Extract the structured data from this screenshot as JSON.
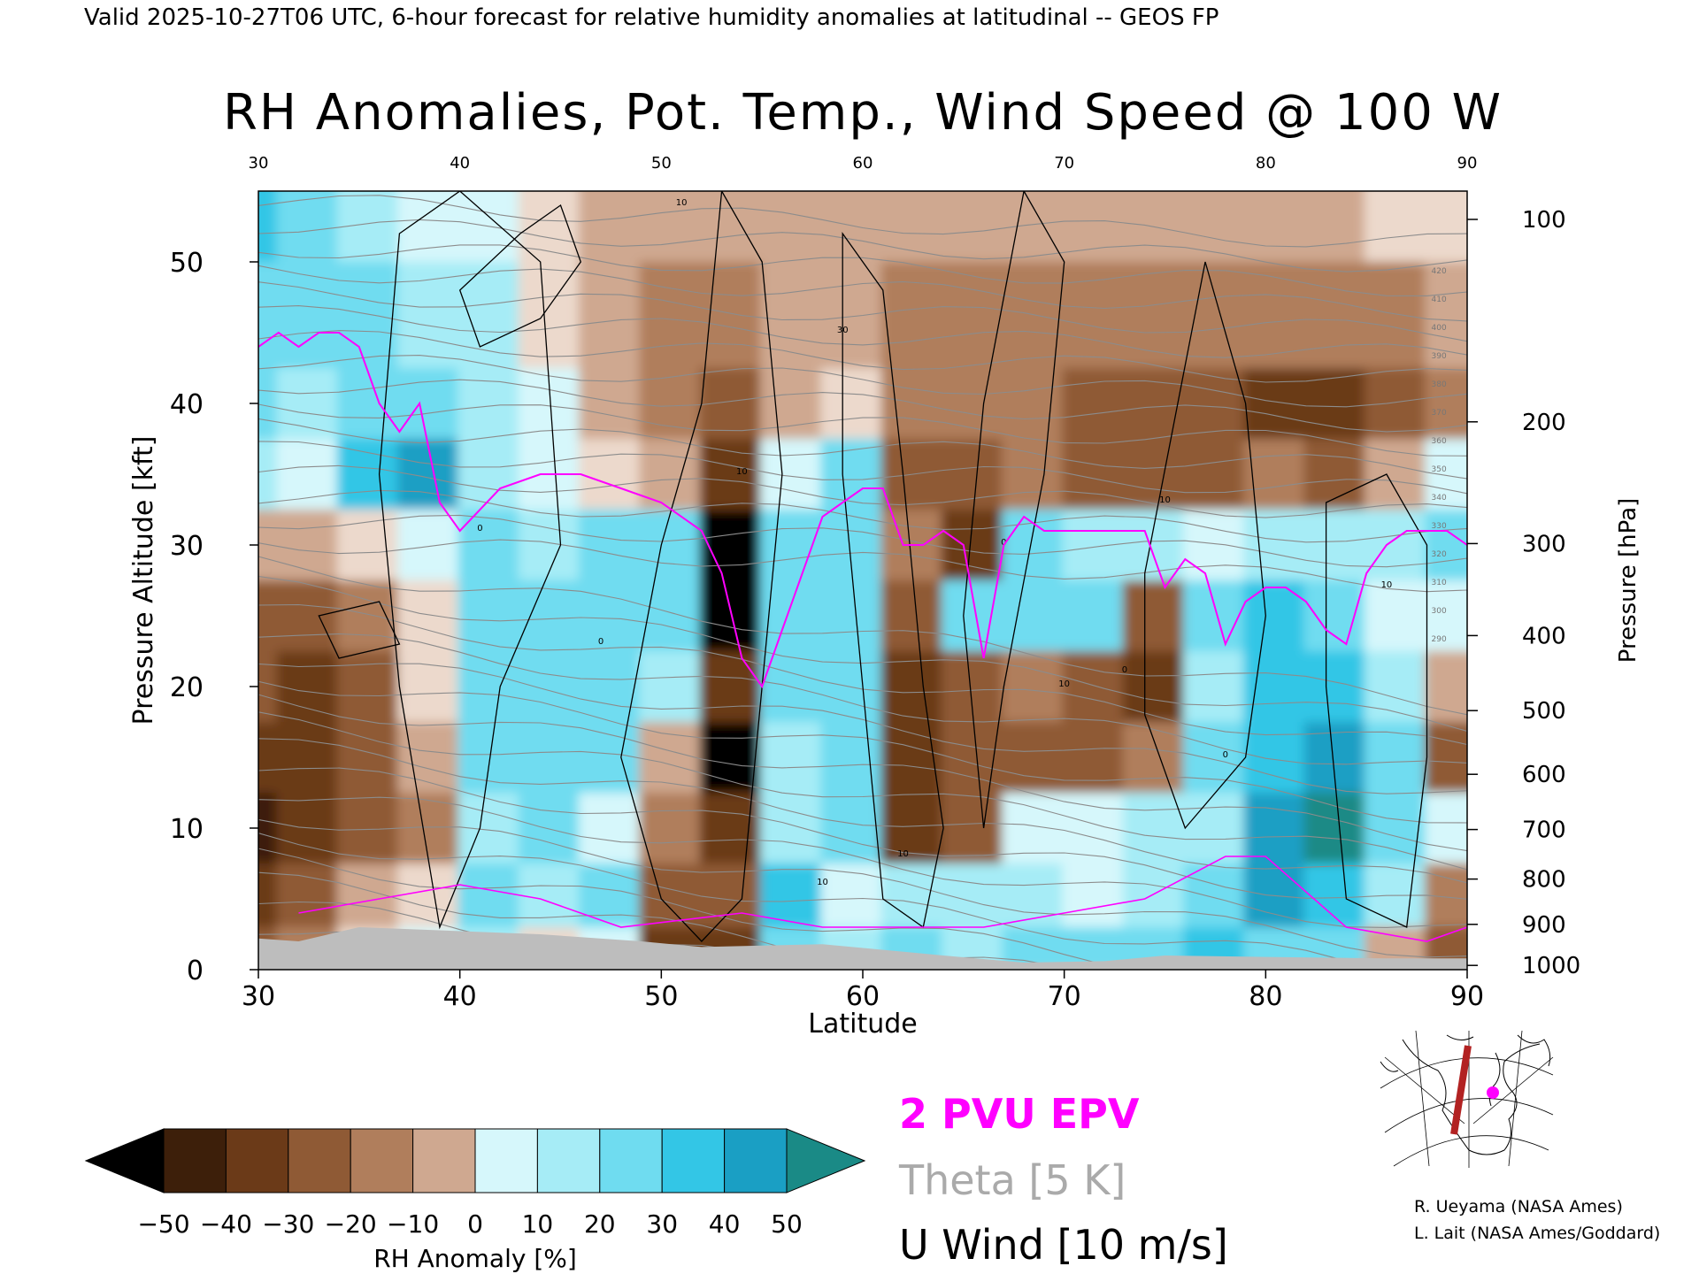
{
  "header": {
    "valid_line": "Valid 2025-10-27T06 UTC, 6-hour forecast for relative humidity anomalies at latitudinal -- GEOS FP"
  },
  "chart_data": {
    "type": "heatmap",
    "title": "RH Anomalies, Pot. Temp., Wind Speed @ 100 W",
    "xlabel": "Latitude",
    "ylabel_left": "Pressure Altitude [kft]",
    "ylabel_right": "Pressure [hPa]",
    "xlim": [
      30,
      90
    ],
    "ylim": [
      0,
      55
    ],
    "x_ticks": [
      30,
      40,
      50,
      60,
      70,
      80,
      90
    ],
    "x_tick_labels": [
      "30",
      "40",
      "50",
      "60",
      "70",
      "80",
      "90"
    ],
    "top_ticks": [
      30,
      40,
      50,
      60,
      70,
      80,
      90
    ],
    "top_tick_labels": [
      "30",
      "40",
      "50",
      "60",
      "70",
      "80",
      "90"
    ],
    "y_ticks": [
      0,
      10,
      20,
      30,
      40,
      50
    ],
    "y_tick_labels": [
      "0",
      "10",
      "20",
      "30",
      "40",
      "50"
    ],
    "pressure_ticks": [
      {
        "label": "100",
        "kft": 53.0
      },
      {
        "label": "200",
        "kft": 38.7
      },
      {
        "label": "300",
        "kft": 30.1
      },
      {
        "label": "400",
        "kft": 23.6
      },
      {
        "label": "500",
        "kft": 18.3
      },
      {
        "label": "600",
        "kft": 13.8
      },
      {
        "label": "700",
        "kft": 9.9
      },
      {
        "label": "800",
        "kft": 6.4
      },
      {
        "label": "900",
        "kft": 3.2
      },
      {
        "label": "1000",
        "kft": 0.3
      }
    ],
    "colorbar": {
      "label": "RH Anomaly [%]",
      "ticks": [
        "−50",
        "−40",
        "−30",
        "−20",
        "−10",
        "0",
        "10",
        "20",
        "30",
        "40",
        "50"
      ],
      "under_color": "#000000",
      "over_color": "#1a8a86",
      "colors": [
        "#3d1f0a",
        "#6b3a18",
        "#8f5a35",
        "#b07e5c",
        "#cfa890",
        "#ecd9cc",
        "#d6f7fb",
        "#a6ecf6",
        "#6fdcf0",
        "#33c6e6",
        "#1a9fc4"
      ]
    },
    "rh_columns": [
      {
        "lat": 30,
        "v": [
          -30,
          -40,
          -45,
          -40,
          -30,
          -25,
          -10,
          20,
          25,
          30,
          40
        ]
      },
      {
        "lat": 33,
        "v": [
          -20,
          -30,
          -35,
          -40,
          -35,
          -30,
          -10,
          10,
          20,
          30,
          30
        ]
      },
      {
        "lat": 36,
        "v": [
          0,
          -10,
          -25,
          -30,
          -30,
          -20,
          0,
          40,
          30,
          25,
          20
        ]
      },
      {
        "lat": 39,
        "v": [
          10,
          0,
          -15,
          -10,
          -5,
          -5,
          10,
          45,
          30,
          20,
          10
        ]
      },
      {
        "lat": 42,
        "v": [
          20,
          25,
          20,
          25,
          30,
          30,
          25,
          20,
          20,
          15,
          5
        ]
      },
      {
        "lat": 45,
        "v": [
          -5,
          15,
          25,
          25,
          25,
          30,
          20,
          10,
          5,
          0,
          -5
        ]
      },
      {
        "lat": 48,
        "v": [
          10,
          25,
          10,
          30,
          30,
          25,
          25,
          -5,
          -10,
          -10,
          -10
        ]
      },
      {
        "lat": 51,
        "v": [
          -35,
          -30,
          -20,
          -10,
          20,
          25,
          30,
          -10,
          -20,
          -15,
          -10
        ]
      },
      {
        "lat": 54,
        "v": [
          -40,
          -30,
          -35,
          -50,
          -40,
          -55,
          -50,
          -40,
          -25,
          -15,
          -10
        ]
      },
      {
        "lat": 57,
        "v": [
          30,
          35,
          20,
          15,
          30,
          25,
          30,
          10,
          -10,
          -10,
          -10
        ]
      },
      {
        "lat": 60,
        "v": [
          20,
          10,
          30,
          30,
          25,
          30,
          25,
          30,
          0,
          -10,
          -10
        ]
      },
      {
        "lat": 63,
        "v": [
          30,
          20,
          -40,
          -35,
          -35,
          -30,
          -20,
          -30,
          -20,
          -15,
          -10
        ]
      },
      {
        "lat": 66,
        "v": [
          20,
          20,
          -30,
          -25,
          -30,
          30,
          -35,
          -25,
          -20,
          -15,
          -10
        ]
      },
      {
        "lat": 69,
        "v": [
          25,
          20,
          10,
          -25,
          -20,
          30,
          25,
          -20,
          -20,
          -15,
          -10
        ]
      },
      {
        "lat": 72,
        "v": [
          25,
          10,
          5,
          -30,
          -25,
          30,
          20,
          -25,
          -25,
          -20,
          -10
        ]
      },
      {
        "lat": 75,
        "v": [
          30,
          20,
          20,
          -20,
          -40,
          -30,
          20,
          -30,
          -30,
          -20,
          -10
        ]
      },
      {
        "lat": 78,
        "v": [
          40,
          30,
          20,
          30,
          20,
          25,
          10,
          -30,
          -30,
          -20,
          -10
        ]
      },
      {
        "lat": 81,
        "v": [
          30,
          45,
          45,
          40,
          40,
          35,
          20,
          -20,
          -35,
          -20,
          -10
        ]
      },
      {
        "lat": 84,
        "v": [
          30,
          40,
          50,
          45,
          35,
          30,
          20,
          -30,
          -35,
          -20,
          -10
        ]
      },
      {
        "lat": 87,
        "v": [
          -10,
          20,
          30,
          30,
          20,
          10,
          20,
          -10,
          -25,
          -15,
          -5
        ]
      },
      {
        "lat": 90,
        "v": [
          -30,
          -20,
          10,
          -30,
          -10,
          5,
          25,
          10,
          -20,
          -10,
          0
        ]
      }
    ],
    "rh_levels_kft": [
      1,
      5,
      10,
      15,
      20,
      25,
      30,
      35,
      40,
      45,
      55
    ],
    "epv_2pvu": {
      "lat": [
        30,
        31,
        32,
        33,
        34,
        35,
        36,
        37,
        38,
        39,
        40,
        42,
        44,
        46,
        48,
        50,
        52,
        53,
        54,
        55,
        56,
        57,
        58,
        59,
        60,
        61,
        62,
        63,
        64,
        65,
        66,
        67,
        68,
        69,
        70,
        72,
        74,
        75,
        76,
        77,
        78,
        79,
        80,
        81,
        82,
        83,
        84,
        85,
        86,
        87,
        88,
        89,
        90
      ],
      "kft": [
        44,
        45,
        44,
        45,
        45,
        44,
        40,
        38,
        40,
        33,
        31,
        34,
        35,
        35,
        34,
        33,
        31,
        28,
        22,
        20,
        24,
        28,
        32,
        33,
        34,
        34,
        30,
        30,
        31,
        30,
        22,
        30,
        32,
        31,
        31,
        31,
        31,
        27,
        29,
        28,
        23,
        26,
        27,
        27,
        26,
        24,
        23,
        28,
        30,
        31,
        31,
        31,
        30
      ]
    },
    "theta_labels": [
      "420",
      "410",
      "400",
      "390",
      "380",
      "370",
      "360",
      "350",
      "340",
      "330",
      "320",
      "310",
      "300",
      "290"
    ],
    "u_wind_labels": [
      "10",
      "0",
      "10",
      "30",
      "10",
      "0",
      "10",
      "0",
      "10",
      "0",
      "10",
      "0",
      "10"
    ],
    "legend": {
      "epv": "2 PVU EPV",
      "epv_color": "#ff00ff",
      "theta": "Theta [5 K]",
      "theta_color": "#aaaaaa",
      "uwind": "U Wind [10 m/s]",
      "uwind_color": "#000000"
    },
    "terrain_color": "#bdbdbd",
    "credits": [
      "R. Ueyama (NASA Ames)",
      "L. Lait (NASA Ames/Goddard)"
    ],
    "map_inset": {
      "track_color": "#b22222",
      "marker_color": "#ff00ff"
    }
  }
}
